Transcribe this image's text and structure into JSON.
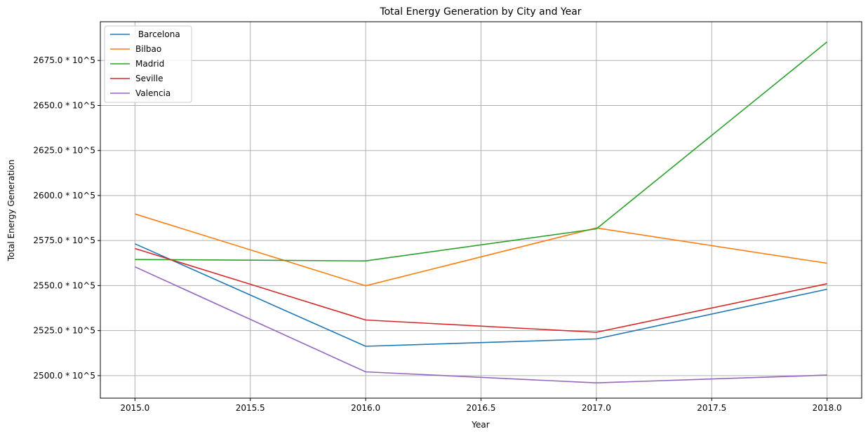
{
  "chart_data": {
    "type": "line",
    "title": "Total Energy Generation by City and Year",
    "xlabel": "Year",
    "ylabel": "Total Energy Generation",
    "x": [
      2015,
      2016,
      2017,
      2018
    ],
    "xlim": [
      2014.85,
      2018.15
    ],
    "ylim": [
      2487.5,
      2696.5
    ],
    "xticks": [
      2015.0,
      2015.5,
      2016.0,
      2016.5,
      2017.0,
      2017.5,
      2018.0
    ],
    "xtick_labels": [
      "2015.0",
      "2015.5",
      "2016.0",
      "2016.5",
      "2017.0",
      "2017.5",
      "2018.0"
    ],
    "yticks": [
      2500,
      2525,
      2550,
      2575,
      2600,
      2625,
      2650,
      2675
    ],
    "ytick_labels": [
      "2500.0 * 10^5",
      "2525.0 * 10^5",
      "2550.0 * 10^5",
      "2575.0 * 10^5",
      "2600.0 * 10^5",
      "2625.0 * 10^5",
      "2650.0 * 10^5",
      "2675.0 * 10^5"
    ],
    "grid": true,
    "legend_position": "top-left",
    "series": [
      {
        "name": " Barcelona",
        "color": "#1f77b4",
        "values": [
          2573.2,
          2516.3,
          2520.4,
          2548.0
        ]
      },
      {
        "name": "Bilbao",
        "color": "#ff7f0e",
        "values": [
          2589.8,
          2549.9,
          2582.0,
          2562.4
        ]
      },
      {
        "name": "Madrid",
        "color": "#2ca02c",
        "values": [
          2564.5,
          2563.7,
          2581.5,
          2685.3
        ]
      },
      {
        "name": "Seville",
        "color": "#d62728",
        "values": [
          2570.6,
          2530.9,
          2524.1,
          2551.0
        ]
      },
      {
        "name": "Valencia",
        "color": "#9467bd",
        "values": [
          2560.4,
          2502.1,
          2496.0,
          2500.3
        ]
      }
    ]
  }
}
